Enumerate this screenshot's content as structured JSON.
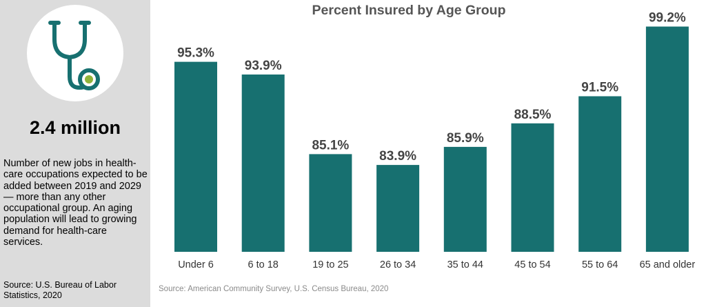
{
  "sidebar": {
    "icon": "stethoscope-icon",
    "big_number": "2.4 million",
    "description": "Number of new jobs in health-care occupations expected to be added between 2019 and 2029 — more than any other occupational group. An aging population will lead to growing demand for health-care services.",
    "source": "Source: U.S. Bureau of Labor Statistics, 2020"
  },
  "colors": {
    "bar": "#177070",
    "icon": "#177070",
    "icon_dot": "#8fb339",
    "sidebar_bg": "#dcdcdc"
  },
  "chart_data": {
    "type": "bar",
    "title": "Percent Insured by Age Group",
    "categories": [
      "Under 6",
      "6 to 18",
      "19 to 25",
      "26 to 34",
      "35 to 44",
      "45 to 54",
      "55 to 64",
      "65 and older"
    ],
    "values": [
      95.3,
      93.9,
      85.1,
      83.9,
      85.9,
      88.5,
      91.5,
      99.2
    ],
    "value_labels": [
      "95.3%",
      "93.9%",
      "85.1%",
      "83.9%",
      "85.9%",
      "88.5%",
      "91.5%",
      "99.2%"
    ],
    "ylim": [
      74.3,
      100
    ],
    "grid": false,
    "source": "Source: American Community Survey, U.S. Census Bureau, 2020"
  }
}
